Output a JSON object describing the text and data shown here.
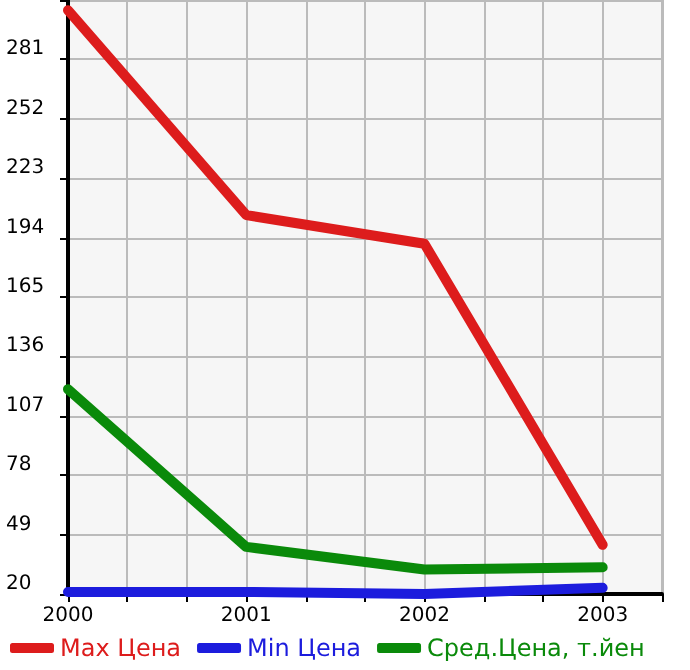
{
  "chart_data": {
    "type": "line",
    "x": [
      2000,
      2001,
      2002,
      2003
    ],
    "series": [
      {
        "name": "Max Цена",
        "color": "#dd1c1c",
        "values": [
          305,
          205,
          191,
          44
        ]
      },
      {
        "name": "Min Цена",
        "color": "#1c1cdd",
        "values": [
          21,
          21,
          20,
          23
        ]
      },
      {
        "name": "Сред.Цена, т.йен",
        "color": "#0a8a0a",
        "values": [
          120,
          43,
          32,
          33
        ]
      }
    ],
    "xlim": [
      2000,
      2003.333
    ],
    "xticks": [
      2000,
      {
        "value": 2000.333,
        "label": null
      },
      {
        "value": 2000.667,
        "label": null
      },
      2001,
      {
        "value": 2001.333,
        "label": null
      },
      {
        "value": 2001.667,
        "label": null
      },
      2002,
      {
        "value": 2002.333,
        "label": null
      },
      {
        "value": 2002.667,
        "label": null
      },
      2003,
      {
        "value": 2003.333,
        "label": null
      }
    ],
    "ylim": [
      20,
      310
    ],
    "yticks": [
      20,
      49,
      78,
      107,
      136,
      165,
      194,
      223,
      252,
      281,
      {
        "value": 310,
        "label": null
      }
    ],
    "grid": true,
    "legend": "bottom",
    "marker": "none",
    "line_style": "solid"
  }
}
